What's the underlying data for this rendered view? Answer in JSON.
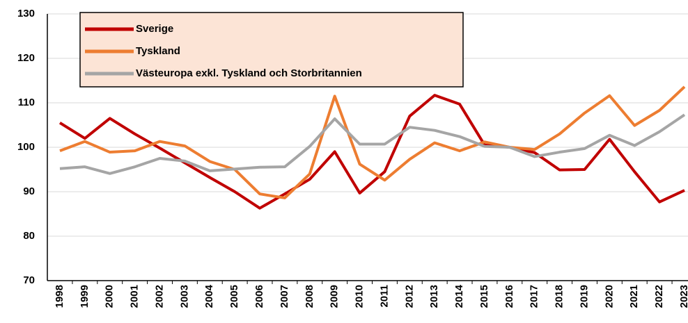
{
  "chart_data": {
    "type": "line",
    "categories": [
      "1998",
      "1999",
      "2000",
      "2001",
      "2002",
      "2003",
      "2004",
      "2005",
      "2006",
      "2007",
      "2008",
      "2009",
      "2010",
      "2011",
      "2012",
      "2013",
      "2014",
      "2015",
      "2016",
      "2017",
      "2018",
      "2019",
      "2020",
      "2021",
      "2022",
      "2023"
    ],
    "series": [
      {
        "name": "Sverige",
        "color": "#c00000",
        "values": [
          105.5,
          102,
          106.5,
          103,
          99.8,
          96.5,
          93.2,
          90,
          86.3,
          89.5,
          92.8,
          99,
          89.7,
          94.5,
          107,
          111.7,
          109.7,
          100.5,
          100,
          98.8,
          94.9,
          95,
          101.8,
          94.5,
          87.7,
          90.3
        ]
      },
      {
        "name": "Tyskland",
        "color": "#ed7d31",
        "values": [
          99.2,
          101.3,
          98.9,
          99.2,
          101.3,
          100.3,
          96.8,
          95,
          89.5,
          88.6,
          94,
          111.5,
          96.2,
          92.6,
          97.3,
          101,
          99.2,
          101.2,
          100,
          99.5,
          103,
          107.7,
          111.6,
          104.9,
          108.3,
          113.6
        ]
      },
      {
        "name": "Västeuropa exkl. Tyskland och Storbritannien",
        "color": "#a5a5a5",
        "values": [
          95.2,
          95.6,
          94.1,
          95.6,
          97.5,
          96.9,
          94.7,
          95.1,
          95.5,
          95.6,
          100.2,
          106.4,
          100.7,
          100.7,
          104.5,
          103.8,
          102.4,
          100.2,
          100,
          97.9,
          98.9,
          99.7,
          102.7,
          100.4,
          103.5,
          107.3
        ]
      }
    ],
    "ylim": [
      70,
      130
    ],
    "yticks": [
      70,
      80,
      90,
      100,
      110,
      120,
      130
    ],
    "grid": true,
    "legend": "upper left"
  }
}
